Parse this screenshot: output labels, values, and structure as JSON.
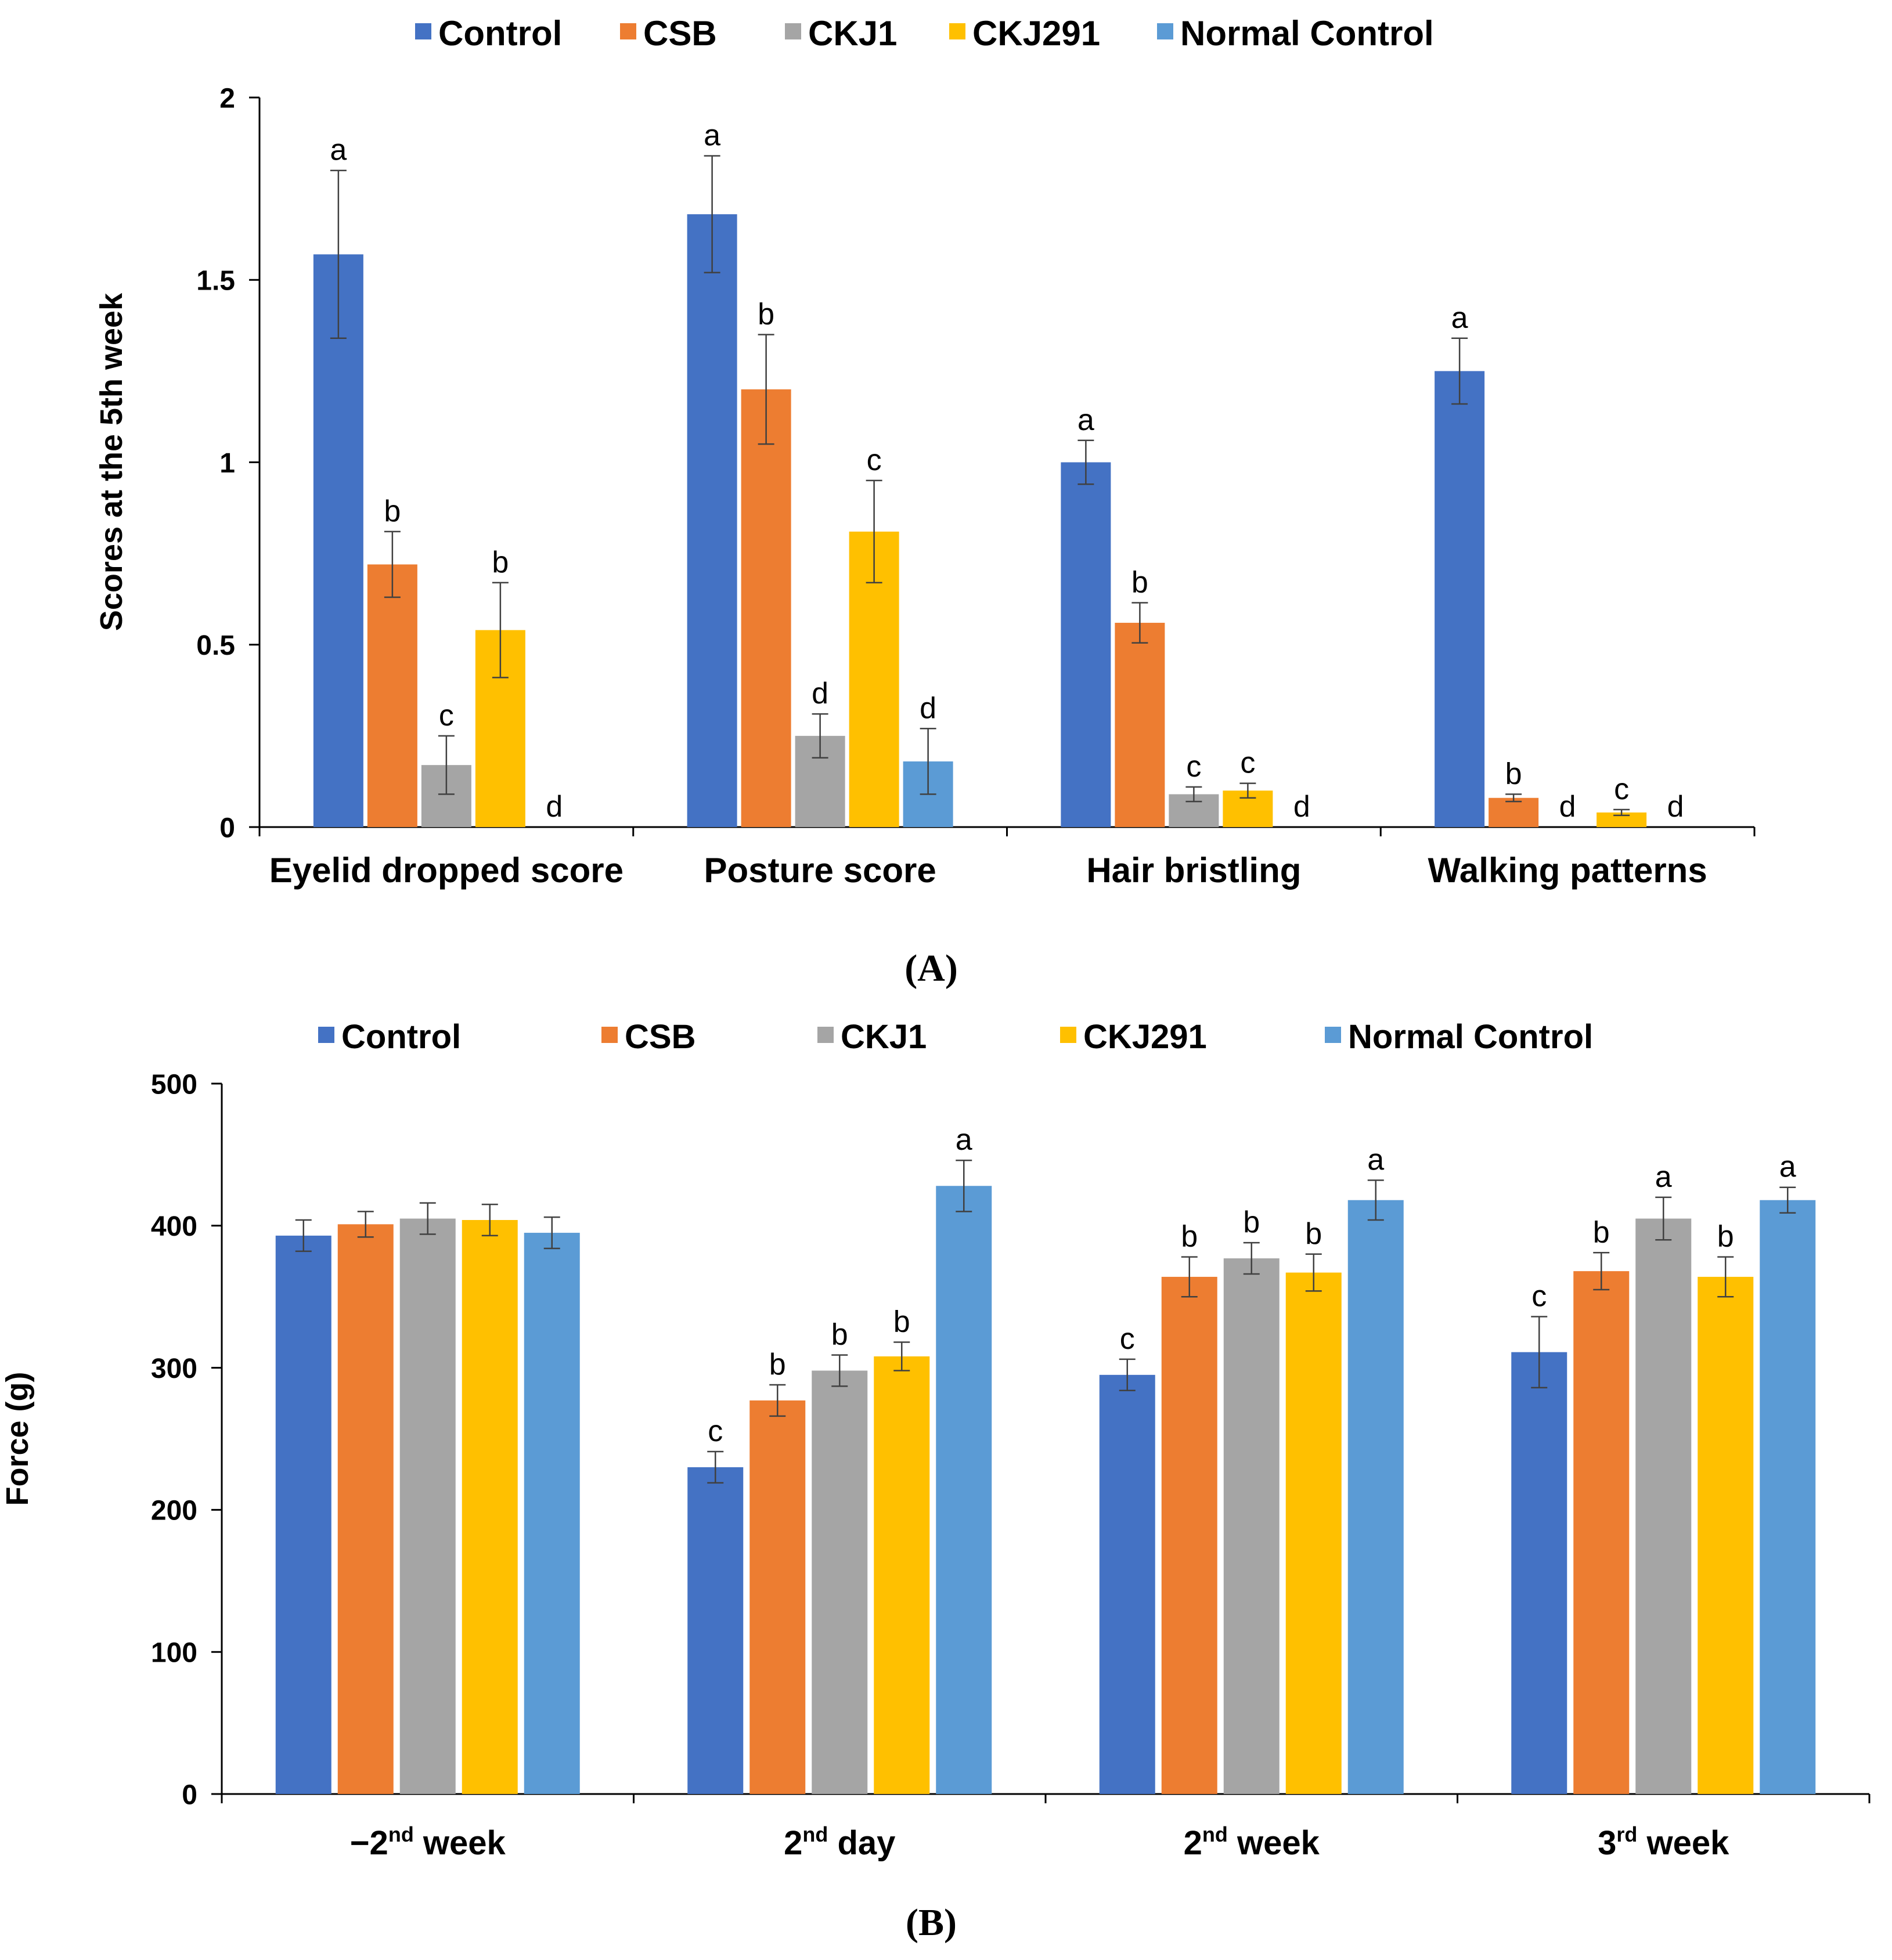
{
  "colors": {
    "Control": "#4472C4",
    "CSB": "#ED7D31",
    "CKJ1": "#A5A5A5",
    "CKJ291": "#FFC000",
    "Normal Control": "#5B9BD5",
    "axis": "#000000",
    "errorbar": "#404040"
  },
  "chart_data": [
    {
      "panel_label": "(A)",
      "type": "bar",
      "title": "",
      "xlabel": "",
      "ylabel": "Scores at the 5th week",
      "ylim": [
        0,
        2
      ],
      "yticks": [
        0,
        0.5,
        1,
        1.5,
        2
      ],
      "ytick_labels": [
        "0",
        "0.5",
        "1",
        "1.5",
        "2"
      ],
      "grid": false,
      "legend": "top",
      "categories": [
        [
          {
            "t": "Eyelid dropped score"
          }
        ],
        [
          {
            "t": "Posture score"
          }
        ],
        [
          {
            "t": "Hair bristling"
          }
        ],
        [
          {
            "t": "Walking patterns"
          }
        ]
      ],
      "series": [
        {
          "name": "Control",
          "values": [
            1.57,
            1.68,
            1.0,
            1.25
          ],
          "errors": [
            0.23,
            0.16,
            0.06,
            0.09
          ],
          "letters": [
            "a",
            "a",
            "a",
            "a"
          ]
        },
        {
          "name": "CSB",
          "values": [
            0.72,
            1.2,
            0.56,
            0.08
          ],
          "errors": [
            0.09,
            0.15,
            0.055,
            0.01
          ],
          "letters": [
            "b",
            "b",
            "b",
            "b"
          ]
        },
        {
          "name": "CKJ1",
          "values": [
            0.17,
            0.25,
            0.09,
            0
          ],
          "errors": [
            0.08,
            0.06,
            0.02,
            0
          ],
          "letters": [
            "c",
            "d",
            "c",
            "d"
          ]
        },
        {
          "name": "CKJ291",
          "values": [
            0.54,
            0.81,
            0.1,
            0.04
          ],
          "errors": [
            0.13,
            0.14,
            0.02,
            0.008
          ],
          "letters": [
            "b",
            "c",
            "c",
            "c"
          ]
        },
        {
          "name": "Normal Control",
          "values": [
            0,
            0.18,
            0,
            0
          ],
          "errors": [
            0,
            0.09,
            0,
            0
          ],
          "letters": [
            "d",
            "d",
            "d",
            "d"
          ]
        }
      ]
    },
    {
      "panel_label": "(B)",
      "type": "bar",
      "title": "",
      "xlabel": "",
      "ylabel": "Force (g)",
      "ylim": [
        0,
        500
      ],
      "yticks": [
        0,
        100,
        200,
        300,
        400,
        500
      ],
      "ytick_labels": [
        "0",
        "100",
        "200",
        "300",
        "400",
        "500"
      ],
      "grid": false,
      "legend": "top",
      "categories": [
        [
          {
            "t": "−2"
          },
          {
            "t": "nd",
            "sup": true
          },
          {
            "t": " week"
          }
        ],
        [
          {
            "t": "2"
          },
          {
            "t": "nd",
            "sup": true
          },
          {
            "t": " day"
          }
        ],
        [
          {
            "t": "2"
          },
          {
            "t": "nd",
            "sup": true
          },
          {
            "t": " week"
          }
        ],
        [
          {
            "t": "3"
          },
          {
            "t": "rd",
            "sup": true
          },
          {
            "t": " week"
          }
        ]
      ],
      "series": [
        {
          "name": "Control",
          "values": [
            393,
            230,
            295,
            311
          ],
          "errors": [
            11,
            11,
            11,
            25
          ],
          "letters": [
            "",
            "c",
            "c",
            "c"
          ]
        },
        {
          "name": "CSB",
          "values": [
            401,
            277,
            364,
            368
          ],
          "errors": [
            9,
            11,
            14,
            13
          ],
          "letters": [
            "",
            "b",
            "b",
            "b"
          ]
        },
        {
          "name": "CKJ1",
          "values": [
            405,
            298,
            377,
            405
          ],
          "errors": [
            11,
            11,
            11,
            15
          ],
          "letters": [
            "",
            "b",
            "b",
            "a"
          ]
        },
        {
          "name": "CKJ291",
          "values": [
            404,
            308,
            367,
            364
          ],
          "errors": [
            11,
            10,
            13,
            14
          ],
          "letters": [
            "",
            "b",
            "b",
            "b"
          ]
        },
        {
          "name": "Normal Control",
          "values": [
            395,
            428,
            418,
            418
          ],
          "errors": [
            11,
            18,
            14,
            9
          ],
          "letters": [
            "",
            "a",
            "a",
            "a"
          ]
        }
      ]
    }
  ]
}
